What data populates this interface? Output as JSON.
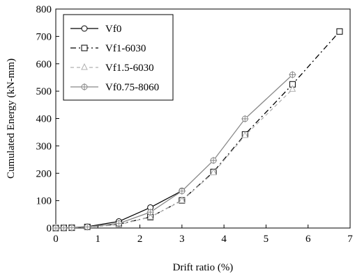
{
  "chart_data": {
    "type": "line",
    "title": "",
    "xlabel": "Drift ratio (%)",
    "ylabel": "Cumulated Energy (kN-mm)",
    "xlim": [
      0,
      7
    ],
    "ylim": [
      0,
      800
    ],
    "xticks": [
      0,
      1,
      2,
      3,
      4,
      5,
      6,
      7
    ],
    "yticks": [
      0,
      100,
      200,
      300,
      400,
      500,
      600,
      700,
      800
    ],
    "xtick_labels": [
      "0",
      "1",
      "2",
      "3",
      "4",
      "5",
      "6",
      "7"
    ],
    "ytick_labels": [
      "0",
      "100",
      "200",
      "300",
      "400",
      "500",
      "600",
      "700",
      "800"
    ],
    "grid": false,
    "legend_position": "top-left",
    "series": [
      {
        "name": "Vf0",
        "color": "#000000",
        "line_style": "solid",
        "marker": "circle",
        "x": [
          0,
          0.19,
          0.38,
          0.75,
          1.5,
          2.25,
          3.0
        ],
        "y": [
          0,
          0.5,
          1.5,
          5,
          24,
          75,
          136
        ]
      },
      {
        "name": "Vf1-6030",
        "color": "#000000",
        "line_style": "dashdot",
        "marker": "square",
        "x": [
          0,
          0.19,
          0.38,
          0.75,
          1.5,
          2.25,
          3.0,
          3.75,
          4.5,
          5.63,
          6.75
        ],
        "y": [
          0,
          0.5,
          1,
          4,
          14,
          40,
          101,
          205,
          342,
          525,
          718
        ]
      },
      {
        "name": "Vf1.5-6030",
        "color": "#b0b0b0",
        "line_style": "dashed",
        "marker": "triangle",
        "x": [
          0,
          0.19,
          0.38,
          0.75,
          1.5,
          2.25,
          3.0,
          3.75,
          4.5,
          5.63
        ],
        "y": [
          0,
          0.5,
          1,
          3,
          12,
          40,
          100,
          202,
          338,
          507
        ]
      },
      {
        "name": "Vf0.75-8060",
        "color": "#888888",
        "line_style": "solid",
        "marker": "crossed-circle",
        "x": [
          0,
          0.19,
          0.38,
          0.75,
          1.5,
          2.25,
          3.0,
          3.75,
          4.5,
          5.63
        ],
        "y": [
          0,
          0.5,
          1,
          4,
          17,
          58,
          135,
          247,
          399,
          560
        ]
      }
    ]
  }
}
